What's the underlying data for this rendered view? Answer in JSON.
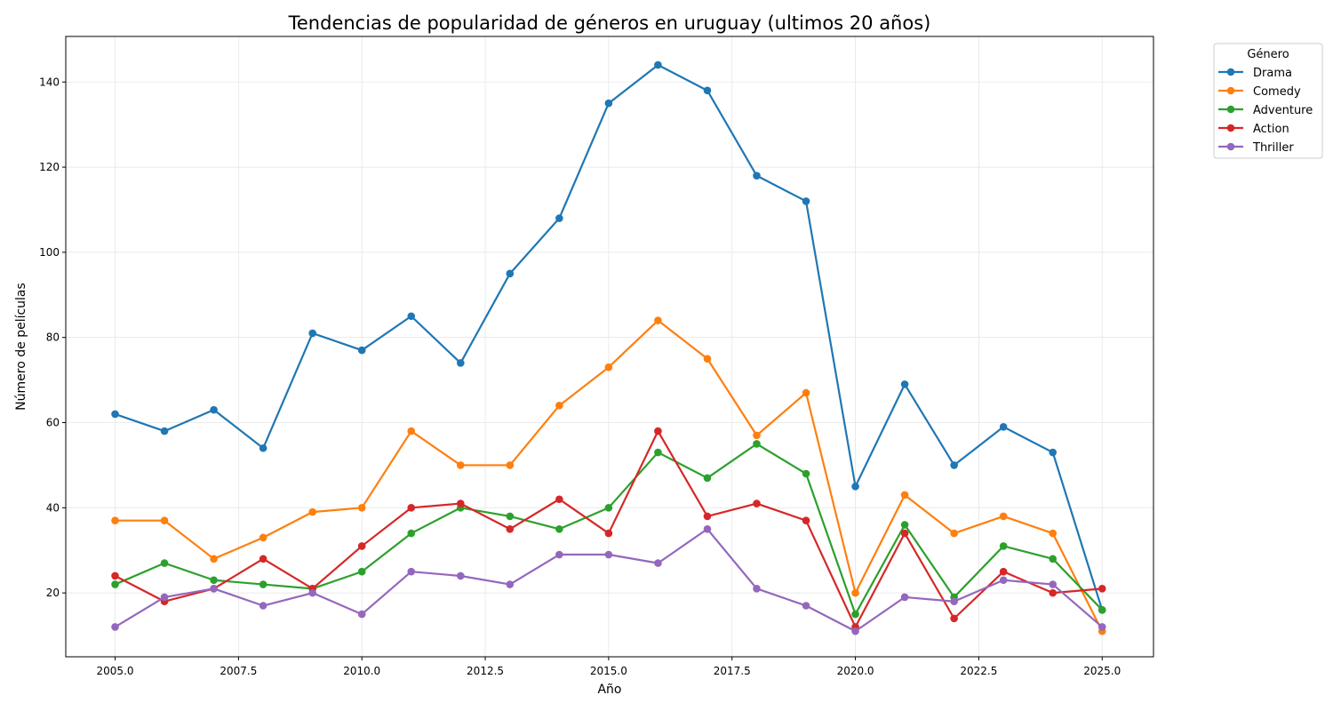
{
  "chart_data": {
    "type": "line",
    "title": "Tendencias de popularidad de géneros en uruguay (ultimos 20 años)",
    "xlabel": "Año",
    "ylabel": "Número de películas",
    "x": [
      2005,
      2006,
      2007,
      2008,
      2009,
      2010,
      2011,
      2012,
      2013,
      2014,
      2015,
      2016,
      2017,
      2018,
      2019,
      2020,
      2021,
      2022,
      2023,
      2024,
      2025
    ],
    "xlim": [
      2004,
      2026.04
    ],
    "ylim": [
      5,
      150.7
    ],
    "xticks": [
      2005,
      2007.5,
      2010,
      2012.5,
      2015,
      2017.5,
      2020,
      2022.5,
      2025
    ],
    "xtick_labels": [
      "2005.0",
      "2007.5",
      "2010.0",
      "2012.5",
      "2015.0",
      "2017.5",
      "2020.0",
      "2022.5",
      "2025.0"
    ],
    "yticks": [
      20,
      40,
      60,
      80,
      100,
      120,
      140
    ],
    "ytick_labels": [
      "20",
      "40",
      "60",
      "80",
      "100",
      "120",
      "140"
    ],
    "grid": true,
    "legend": {
      "title": "Género",
      "placement": "outside-top-right"
    },
    "series": [
      {
        "name": "Drama",
        "color": "#1f77b4",
        "values": [
          62,
          58,
          63,
          54,
          81,
          77,
          85,
          74,
          95,
          108,
          135,
          144,
          138,
          118,
          112,
          45,
          69,
          50,
          59,
          53,
          16
        ]
      },
      {
        "name": "Comedy",
        "color": "#ff7f0e",
        "values": [
          37,
          37,
          28,
          33,
          39,
          40,
          58,
          50,
          50,
          64,
          73,
          84,
          75,
          57,
          67,
          20,
          43,
          34,
          38,
          34,
          11
        ]
      },
      {
        "name": "Adventure",
        "color": "#2ca02c",
        "values": [
          22,
          27,
          23,
          22,
          21,
          25,
          34,
          40,
          38,
          35,
          40,
          53,
          47,
          55,
          48,
          15,
          36,
          19,
          31,
          28,
          16
        ]
      },
      {
        "name": "Action",
        "color": "#d62728",
        "values": [
          24,
          18,
          21,
          28,
          21,
          31,
          40,
          41,
          35,
          42,
          34,
          58,
          38,
          41,
          37,
          12,
          34,
          14,
          25,
          20,
          21
        ]
      },
      {
        "name": "Thriller",
        "color": "#9467bd",
        "values": [
          12,
          19,
          21,
          17,
          20,
          15,
          25,
          24,
          22,
          29,
          29,
          27,
          35,
          21,
          17,
          11,
          19,
          18,
          23,
          22,
          12
        ]
      }
    ]
  }
}
